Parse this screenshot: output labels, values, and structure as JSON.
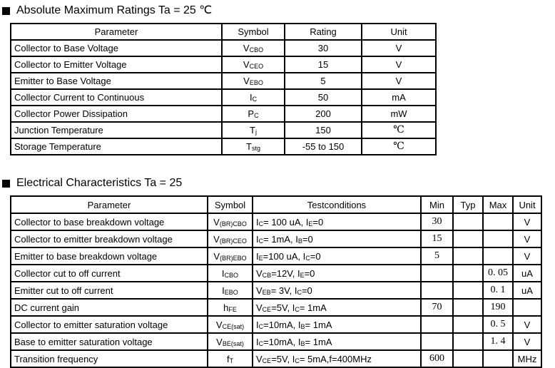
{
  "s1": {
    "title": "Absolute Maximum Ratings Ta = 25 ℃",
    "headers": [
      "Parameter",
      "Symbol",
      "Rating",
      "Unit"
    ],
    "rows": [
      {
        "parameter": "Collector to Base Voltage",
        "symbol": "V[CBO]",
        "rating": "30",
        "unit": "V"
      },
      {
        "parameter": "Collector to Emitter Voltage",
        "symbol": "V[CEO]",
        "rating": "15",
        "unit": "V"
      },
      {
        "parameter": "Emitter to Base Voltage",
        "symbol": "V[EBO]",
        "rating": "5",
        "unit": "V"
      },
      {
        "parameter": "Collector Current to Continuous",
        "symbol": "I[C]",
        "rating": "50",
        "unit": "mA"
      },
      {
        "parameter": "Collector Power Dissipation",
        "symbol": "P[C]",
        "rating": "200",
        "unit": "mW"
      },
      {
        "parameter": "Junction Temperature",
        "symbol": "T[j]",
        "rating": "150",
        "unit": "℃"
      },
      {
        "parameter": "Storage Temperature",
        "symbol": "T[stg]",
        "rating": "-55 to 150",
        "unit": "℃"
      }
    ]
  },
  "s2": {
    "title": "Electrical Characteristics Ta = 25",
    "headers": [
      "Parameter",
      "Symbol",
      "Testconditions",
      "Min",
      "Typ",
      "Max",
      "Unit"
    ],
    "rows": [
      {
        "parameter": "Collector to base breakdown voltage",
        "symbol": "V[(BR)CBO]",
        "conditions": "I[C]= 100 uA, I[E]=0",
        "min": "30",
        "typ": "",
        "max": "",
        "unit": "V"
      },
      {
        "parameter": "Collector to emitter breakdown voltage",
        "symbol": "V[(BR)CEO]",
        "conditions": "I[C]= 1mA, I[B]=0",
        "min": "15",
        "typ": "",
        "max": "",
        "unit": "V"
      },
      {
        "parameter": "Emitter to base breakdown voltage",
        "symbol": "V[(BR)EBO]",
        "conditions": "I[E]=100 uA, I[C]=0",
        "min": "5",
        "typ": "",
        "max": "",
        "unit": "V"
      },
      {
        "parameter": "Collector cut to off current",
        "symbol": "I[CBO]",
        "conditions": "V[CB]=12V, I[E]=0",
        "min": "",
        "typ": "",
        "max": "0. 05",
        "unit": "uA"
      },
      {
        "parameter": "Emitter cut to off current",
        "symbol": "I[EBO]",
        "conditions": "V[EB]= 3V, I[C]=0",
        "min": "",
        "typ": "",
        "max": "0. 1",
        "unit": "uA"
      },
      {
        "parameter": "DC current gain",
        "symbol": "h[FE]",
        "conditions": "V[CE]=5V, I[C]= 1mA",
        "min": "70",
        "typ": "",
        "max": "190",
        "unit": ""
      },
      {
        "parameter": "Collector to emitter saturation voltage",
        "symbol": "V[CE(sat)]",
        "conditions": "I[C]=10mA, I[B]= 1mA",
        "min": "",
        "typ": "",
        "max": "0. 5",
        "unit": "V"
      },
      {
        "parameter": "Base to emitter saturation voltage",
        "symbol": "V[BE(sat)]",
        "conditions": "I[C]=10mA, I[B]= 1mA",
        "min": "",
        "typ": "",
        "max": "1. 4",
        "unit": "V"
      },
      {
        "parameter": "Transition frequency",
        "symbol": "f[T]",
        "conditions": "V[CE]=5V, I[C]= 5mA,f=400MHz",
        "min": "600",
        "typ": "",
        "max": "",
        "unit": "MHz"
      }
    ]
  }
}
